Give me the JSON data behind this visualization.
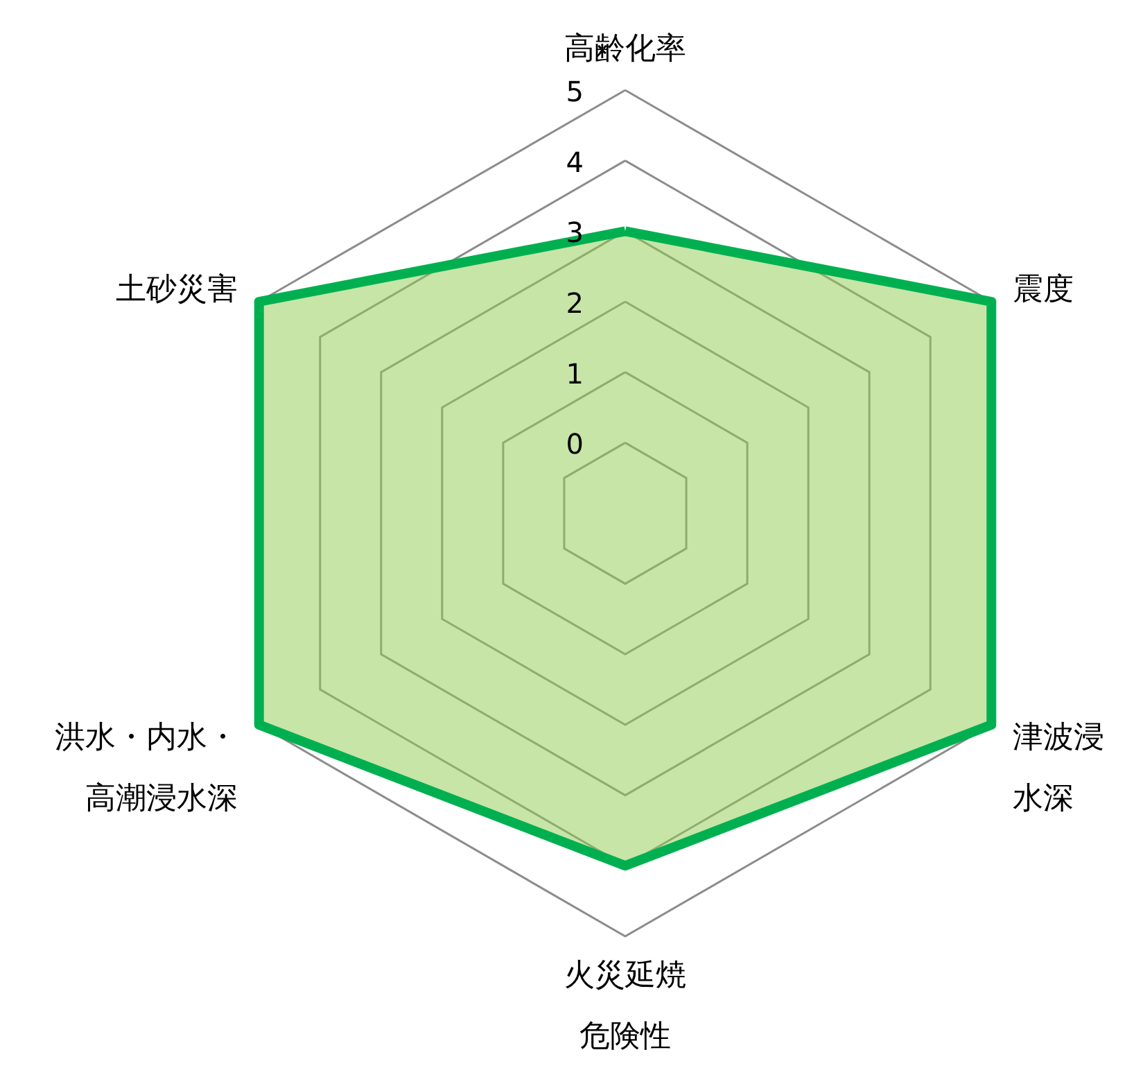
{
  "chart_data": {
    "type": "radar",
    "categories": [
      "高齢化率",
      "震度",
      "津波浸水深",
      "火災延焼危険性",
      "洪水・内水・高潮浸水深",
      "土砂災害"
    ],
    "series": [
      {
        "color": "#00b050",
        "values": [
          3,
          5,
          5,
          4,
          5,
          5
        ]
      }
    ],
    "ylim": [
      -1,
      5
    ],
    "yticks": [
      0,
      1,
      2,
      3,
      4,
      5
    ],
    "grid": true
  }
}
